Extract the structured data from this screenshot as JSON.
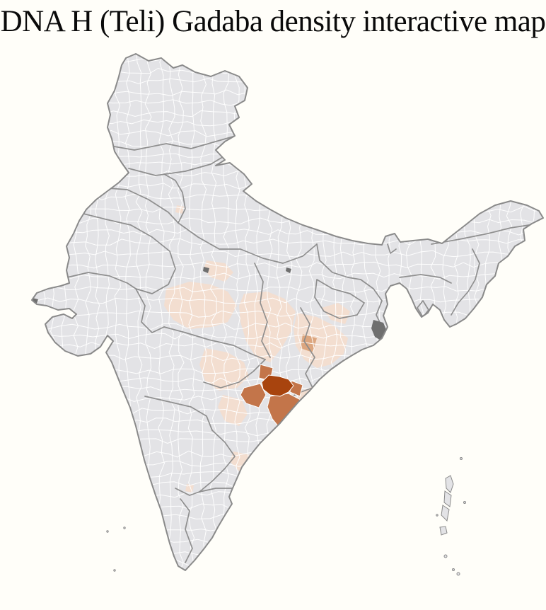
{
  "header": {
    "title": "DNA H (Teli) Gadaba density interactive map"
  },
  "canvas": {
    "background": "#fffef9",
    "title_color": "#0a0a0a"
  },
  "map": {
    "region_name": "India",
    "kind": "district-level choropleth",
    "base_fill": "#e3e3e6",
    "ocean_color": "#ffffff",
    "district_border_color": "#ffffff",
    "state_border_color": "#8a8a8a",
    "coast_border_color": "#8a8a8a",
    "urban_patch_color": "#6f6f6f",
    "density_levels": [
      {
        "level": 0,
        "name": "none",
        "color": "#e3e3e6"
      },
      {
        "level": 1,
        "name": "low",
        "color": "#f3ded0"
      },
      {
        "level": 2,
        "name": "medium-low",
        "color": "#dca67f"
      },
      {
        "level": 3,
        "name": "medium-high",
        "color": "#c3754a"
      },
      {
        "level": 4,
        "name": "high",
        "color": "#a8440e"
      }
    ]
  }
}
